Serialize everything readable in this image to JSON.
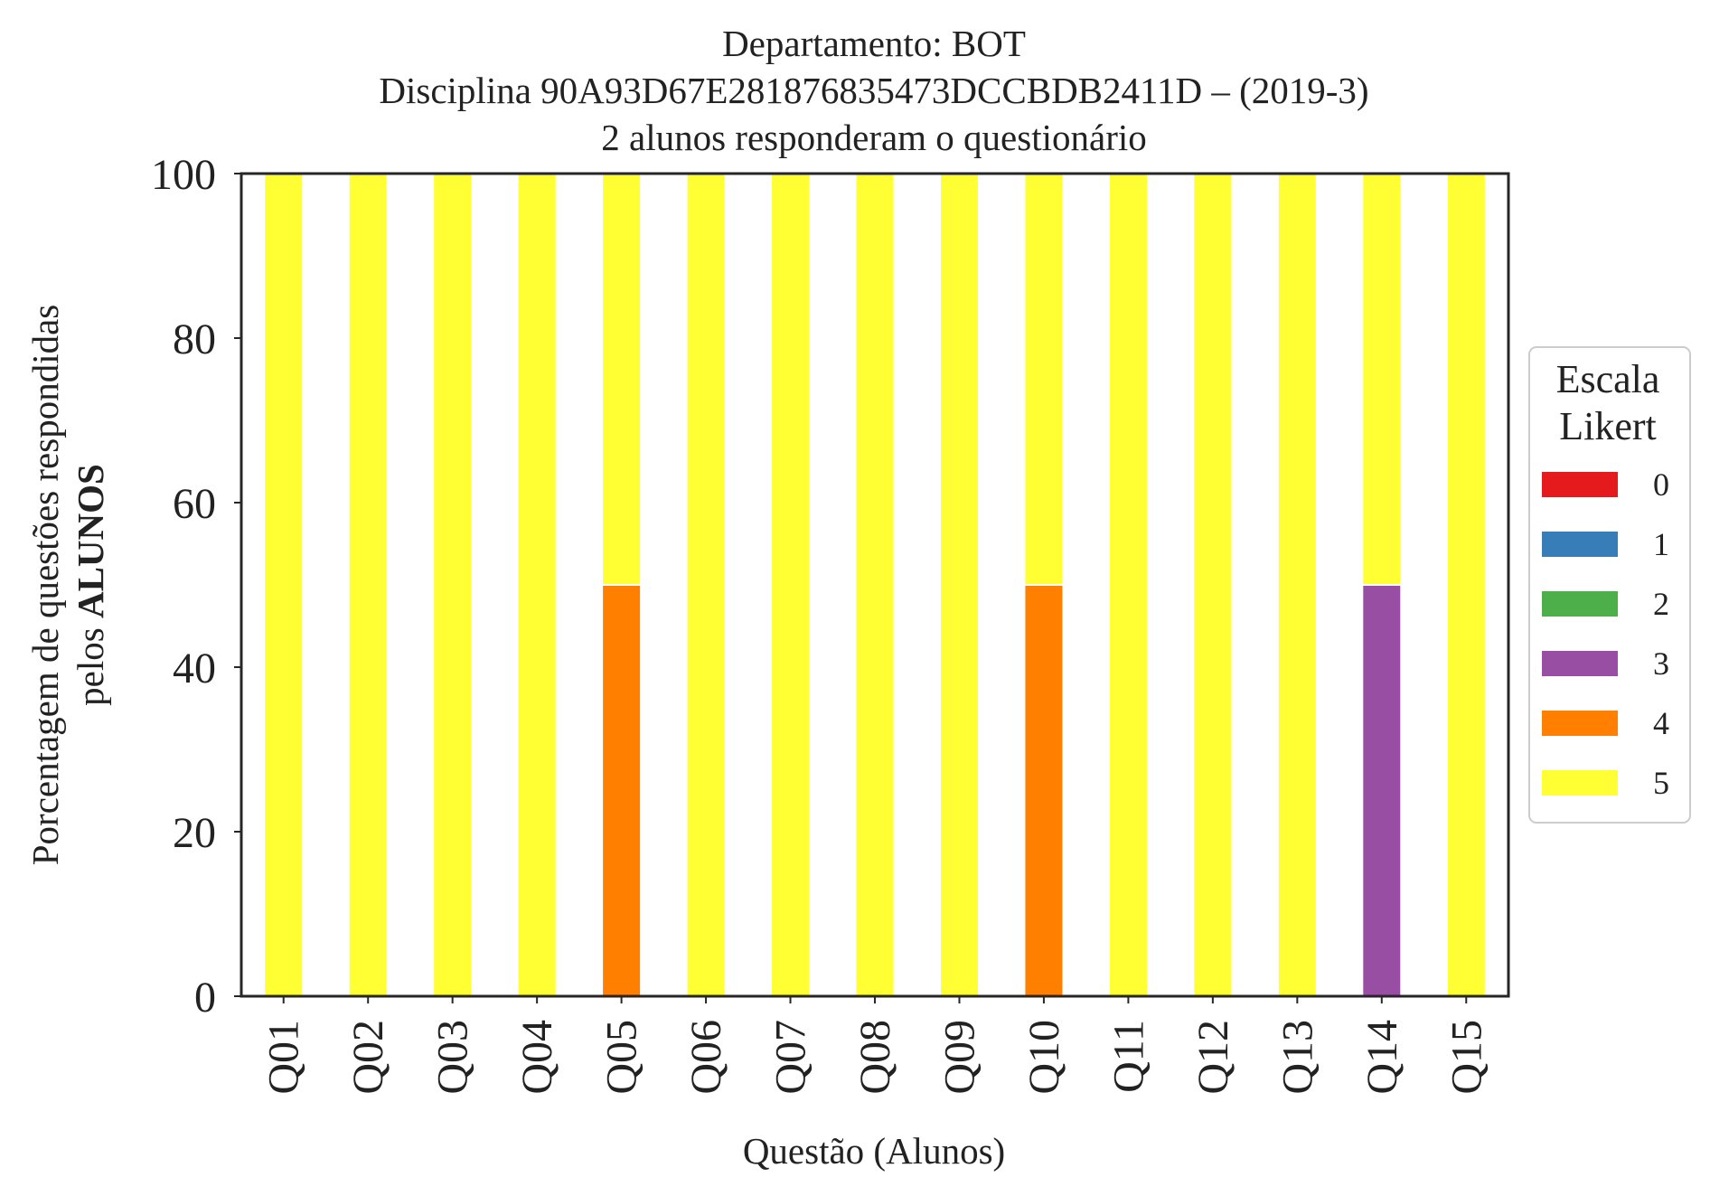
{
  "chart_data": {
    "type": "bar",
    "stacked": true,
    "title": [
      "Departamento: BOT",
      "Disciplina 90A93D67E281876835473DCCBDB2411D – (2019-3)",
      "2 alunos responderam o questionário"
    ],
    "xlabel": "Questão (Alunos)",
    "ylabel_line1": "Porcentagem de questões respondidas",
    "ylabel_line2_prefix": "pelos ",
    "ylabel_line2_bold": "ALUNOS",
    "ylim": [
      0,
      100
    ],
    "yticks": [
      "0",
      "20",
      "40",
      "60",
      "80",
      "100"
    ],
    "categories": [
      "Q01",
      "Q02",
      "Q03",
      "Q04",
      "Q05",
      "Q06",
      "Q07",
      "Q08",
      "Q09",
      "Q10",
      "Q11",
      "Q12",
      "Q13",
      "Q14",
      "Q15"
    ],
    "legend_title": [
      "Escala",
      "Likert"
    ],
    "legend_position": "right",
    "series": [
      {
        "name": "0",
        "color": "#e41a1c",
        "values": [
          0,
          0,
          0,
          0,
          0,
          0,
          0,
          0,
          0,
          0,
          0,
          0,
          0,
          0,
          0
        ]
      },
      {
        "name": "1",
        "color": "#377eb8",
        "values": [
          0,
          0,
          0,
          0,
          0,
          0,
          0,
          0,
          0,
          0,
          0,
          0,
          0,
          0,
          0
        ]
      },
      {
        "name": "2",
        "color": "#4daf4a",
        "values": [
          0,
          0,
          0,
          0,
          0,
          0,
          0,
          0,
          0,
          0,
          0,
          0,
          0,
          0,
          0
        ]
      },
      {
        "name": "3",
        "color": "#984ea3",
        "values": [
          0,
          0,
          0,
          0,
          0,
          0,
          0,
          0,
          0,
          0,
          0,
          0,
          0,
          50,
          0
        ]
      },
      {
        "name": "4",
        "color": "#ff7f00",
        "values": [
          0,
          0,
          0,
          0,
          50,
          0,
          0,
          0,
          0,
          50,
          0,
          0,
          0,
          0,
          0
        ]
      },
      {
        "name": "5",
        "color": "#ffff33",
        "values": [
          100,
          100,
          100,
          100,
          50,
          100,
          100,
          100,
          100,
          50,
          100,
          100,
          100,
          50,
          100
        ]
      }
    ]
  }
}
